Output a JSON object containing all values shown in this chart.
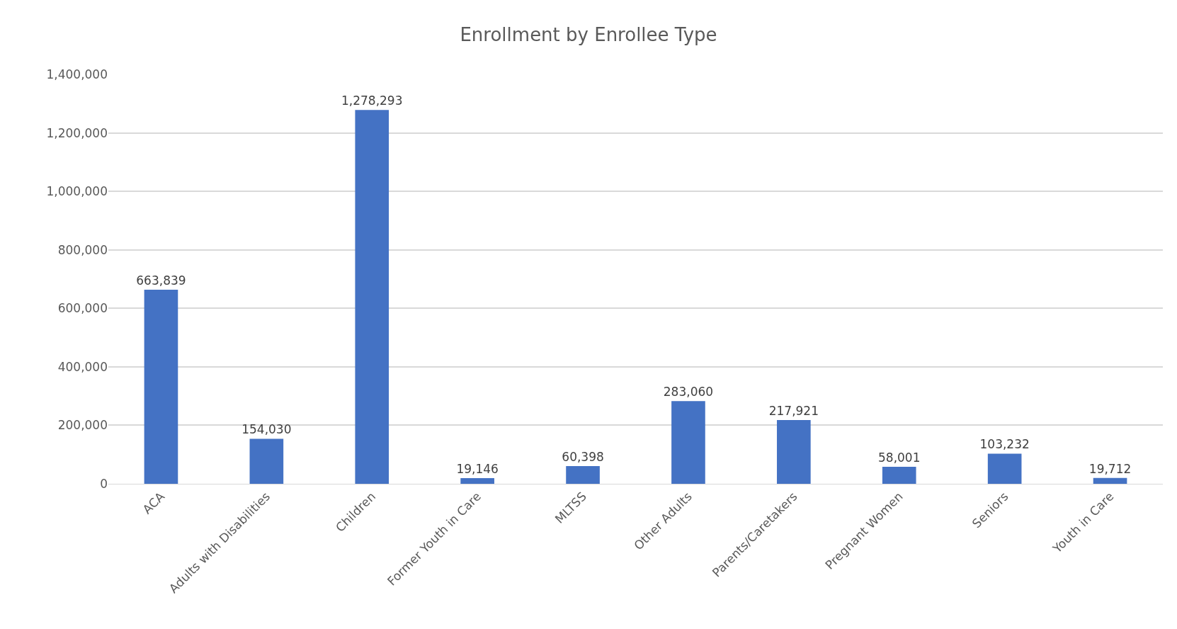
{
  "chart_data": {
    "type": "bar",
    "title": "Enrollment by Enrollee Type",
    "categories": [
      "ACA",
      "Adults with Disabilities",
      "Children",
      "Former Youth in Care",
      "MLTSS",
      "Other Adults",
      "Parents/Caretakers",
      "Pregnant Women",
      "Seniors",
      "Youth in Care"
    ],
    "values": [
      663839,
      154030,
      1278293,
      19146,
      60398,
      283060,
      217921,
      58001,
      103232,
      19712
    ],
    "value_labels": [
      "663,839",
      "154,030",
      "1,278,293",
      "19,146",
      "60,398",
      "283,060",
      "217,921",
      "58,001",
      "103,232",
      "19,712"
    ],
    "color": "#4472c4",
    "ylim": [
      0,
      1400000
    ],
    "yticks": [
      {
        "value": 0,
        "label": "0"
      },
      {
        "value": 200000,
        "label": "200,000"
      },
      {
        "value": 400000,
        "label": "400,000"
      },
      {
        "value": 600000,
        "label": "600,000"
      },
      {
        "value": 800000,
        "label": "800,000"
      },
      {
        "value": 1000000,
        "label": "1,000,000"
      },
      {
        "value": 1200000,
        "label": "1,200,000"
      },
      {
        "value": 1400000,
        "label": "1,400,000"
      }
    ],
    "grid": "y"
  }
}
